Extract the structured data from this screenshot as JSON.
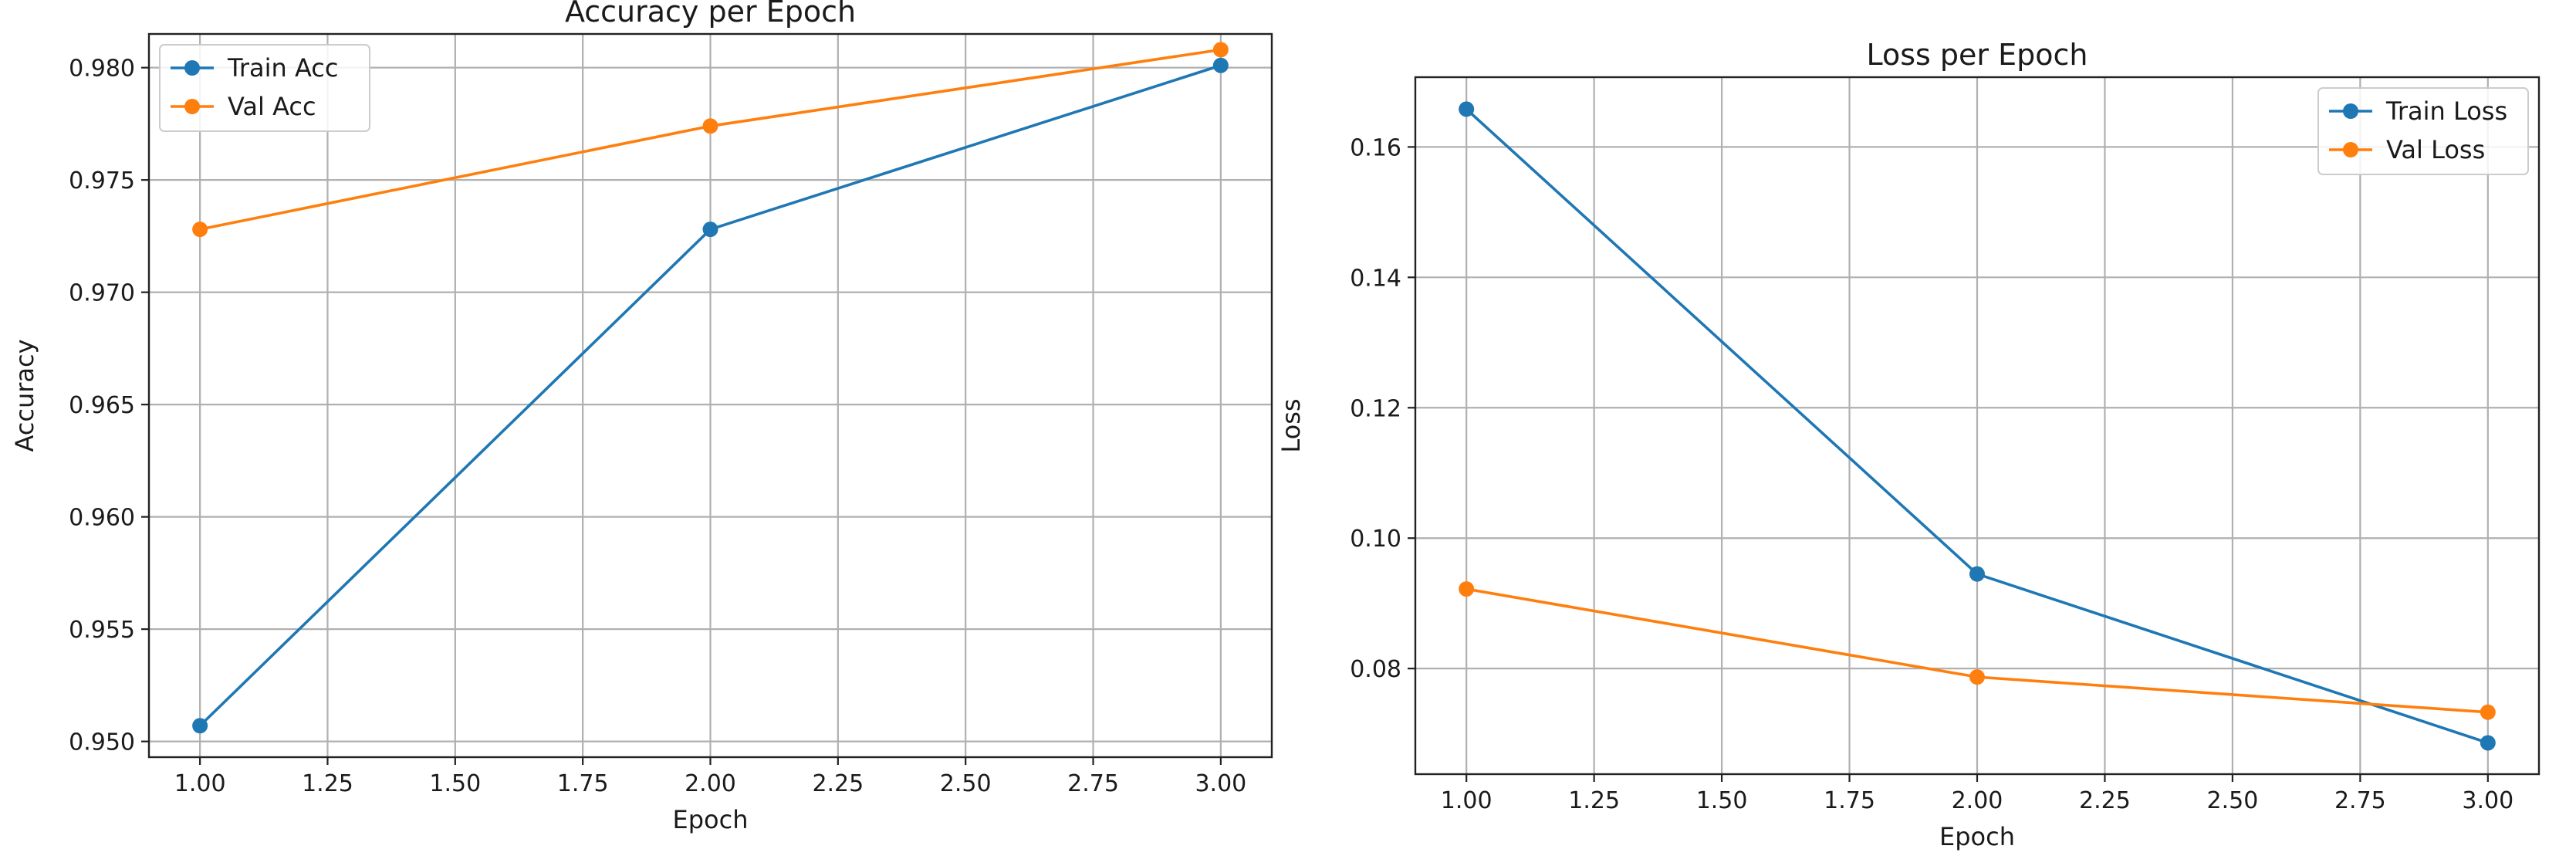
{
  "colors": {
    "train": "#1f77b4",
    "val": "#ff7f0e"
  },
  "chart_data": [
    {
      "type": "line",
      "title": "Accuracy per Epoch",
      "xlabel": "Epoch",
      "ylabel": "Accuracy",
      "xlim": [
        0.9,
        3.1
      ],
      "ylim": [
        0.9493,
        0.9815
      ],
      "xticks": [
        1.0,
        1.25,
        1.5,
        1.75,
        2.0,
        2.25,
        2.5,
        2.75,
        3.0
      ],
      "xtick_labels": [
        "1.00",
        "1.25",
        "1.50",
        "1.75",
        "2.00",
        "2.25",
        "2.50",
        "2.75",
        "3.00"
      ],
      "yticks": [
        0.95,
        0.955,
        0.96,
        0.965,
        0.97,
        0.975,
        0.98
      ],
      "ytick_labels": [
        "0.950",
        "0.955",
        "0.960",
        "0.965",
        "0.970",
        "0.975",
        "0.980"
      ],
      "grid": true,
      "legend_position": "top-left",
      "x": [
        1.0,
        2.0,
        3.0
      ],
      "series": [
        {
          "name": "Train Acc",
          "color": "#1f77b4",
          "values": [
            0.9507,
            0.9728,
            0.9801
          ]
        },
        {
          "name": "Val Acc",
          "color": "#ff7f0e",
          "values": [
            0.9728,
            0.9774,
            0.9808
          ]
        }
      ]
    },
    {
      "type": "line",
      "title": "Loss per Epoch",
      "xlabel": "Epoch",
      "ylabel": "Loss",
      "xlim": [
        0.9,
        3.1
      ],
      "ylim": [
        0.0638,
        0.1707
      ],
      "xticks": [
        1.0,
        1.25,
        1.5,
        1.75,
        2.0,
        2.25,
        2.5,
        2.75,
        3.0
      ],
      "xtick_labels": [
        "1.00",
        "1.25",
        "1.50",
        "1.75",
        "2.00",
        "2.25",
        "2.50",
        "2.75",
        "3.00"
      ],
      "yticks": [
        0.08,
        0.1,
        0.12,
        0.14,
        0.16
      ],
      "ytick_labels": [
        "0.08",
        "0.10",
        "0.12",
        "0.14",
        "0.16"
      ],
      "grid": true,
      "legend_position": "top-right",
      "x": [
        1.0,
        2.0,
        3.0
      ],
      "series": [
        {
          "name": "Train Loss",
          "color": "#1f77b4",
          "values": [
            0.1658,
            0.0945,
            0.0686
          ]
        },
        {
          "name": "Val Loss",
          "color": "#ff7f0e",
          "values": [
            0.0922,
            0.0787,
            0.0733
          ]
        }
      ]
    }
  ]
}
